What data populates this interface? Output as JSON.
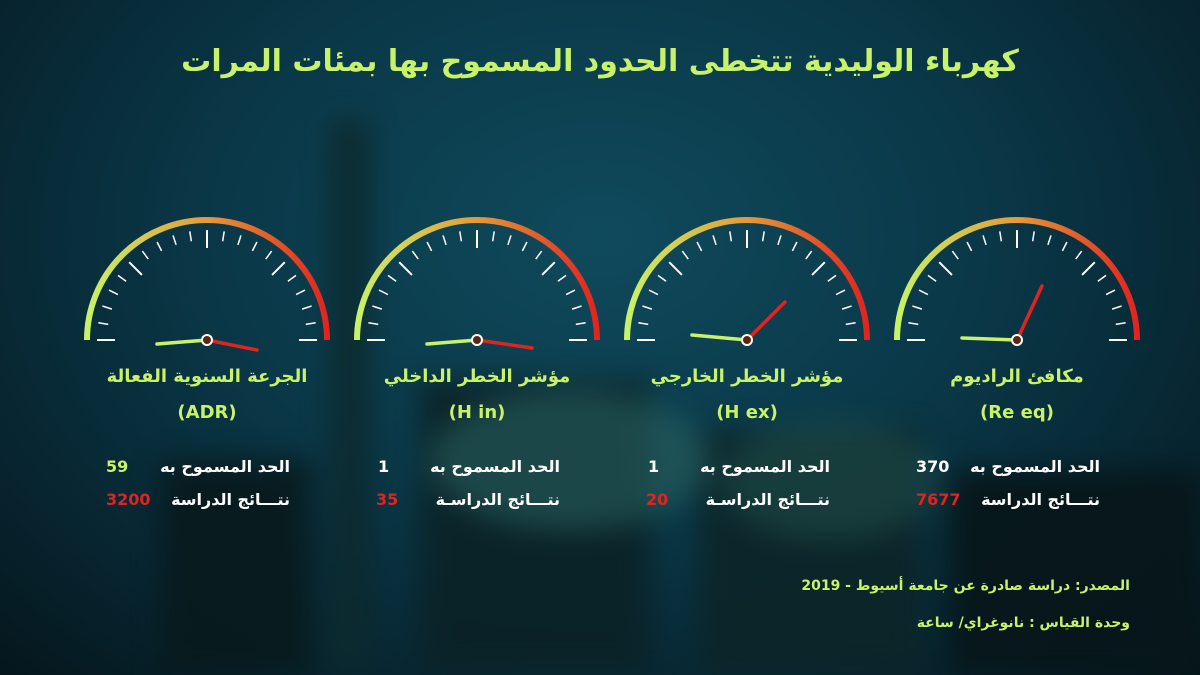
{
  "title": "كهرباء الوليدية تتخطى الحدود المسموح بها بمئات المرات",
  "colors": {
    "accent": "#c8f26a",
    "danger": "#e0241f",
    "arc_start": "#c8f26a",
    "arc_mid": "#e39a3a",
    "arc_end": "#e0241f"
  },
  "gauges": [
    {
      "name": "مكافئ الراديوم",
      "abbr": "(Re eq)",
      "allowed_label": "الحد المسموح به",
      "allowed_value": "370",
      "result_label": "نتـــائج الدراسة",
      "result_value": "7677"
    },
    {
      "name": "مؤشر الخطر الخارجي",
      "abbr": "(H ex)",
      "allowed_label": "الحد المسموح به",
      "allowed_value": "1",
      "result_label": "نتـــائج الدراسـة",
      "result_value": "20"
    },
    {
      "name": "مؤشر الخطر الداخلي",
      "abbr": "(H in)",
      "allowed_label": "الحد المسموح به",
      "allowed_value": "1",
      "result_label": "نتـــائج الدراسـة",
      "result_value": "35"
    },
    {
      "name": "الجرعة السنوية الفعالة",
      "abbr": "(ADR)",
      "allowed_label": "الحد المسموح به",
      "allowed_value": "59",
      "result_label": "نتـــائج الدراسة",
      "result_value": "3200"
    }
  ],
  "source": "المصدر: دراسة صادرة عن جامعة أسيوط - 2019",
  "unit": "وحدة القياس : نانوغراي/ ساعة"
}
